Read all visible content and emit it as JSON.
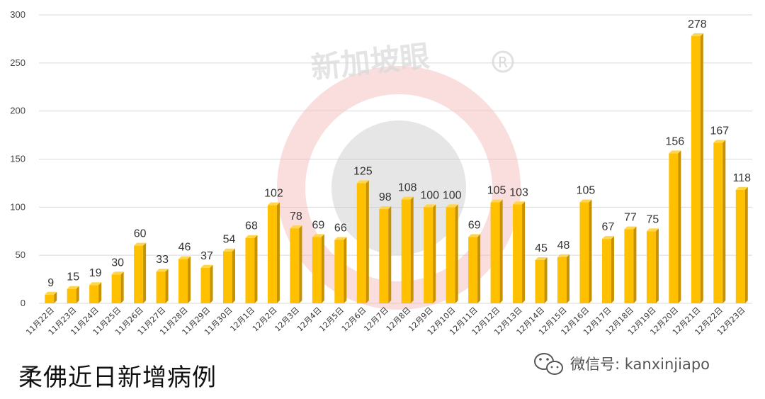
{
  "caption": "柔佛近日新增病例",
  "watermark": "新加坡眼",
  "wechat_label": "微信号: kanxinjiapo",
  "colors": {
    "bar_front": "#ffc000",
    "bar_side": "#c79100",
    "bar_top": "#ffd54d",
    "grid": "#d9d9d9",
    "watermark_ring": "#f3b5b5",
    "watermark_disc": "#c8c8c8"
  },
  "chart_data": {
    "type": "bar",
    "title": "",
    "xlabel": "",
    "ylabel": "",
    "ylim": [
      0,
      300
    ],
    "y_ticks": [
      0,
      50,
      100,
      150,
      200,
      250,
      300
    ],
    "grid": true,
    "legend": "none",
    "categories": [
      "11月22日",
      "11月23日",
      "11月24日",
      "11月25日",
      "11月26日",
      "11月27日",
      "11月28日",
      "11月29日",
      "11月30日",
      "12月1日",
      "12月2日",
      "12月3日",
      "12月4日",
      "12月5日",
      "12月6日",
      "12月7日",
      "12月8日",
      "12月9日",
      "12月10日",
      "12月11日",
      "12月12日",
      "12月13日",
      "12月14日",
      "12月15日",
      "12月16日",
      "12月17日",
      "12月18日",
      "12月19日",
      "12月20日",
      "12月21日",
      "12月22日",
      "12月23日"
    ],
    "values": [
      9,
      15,
      19,
      30,
      60,
      33,
      46,
      37,
      54,
      68,
      102,
      78,
      69,
      66,
      125,
      98,
      108,
      100,
      100,
      69,
      105,
      103,
      45,
      48,
      105,
      67,
      77,
      75,
      156,
      278,
      167,
      118
    ]
  }
}
